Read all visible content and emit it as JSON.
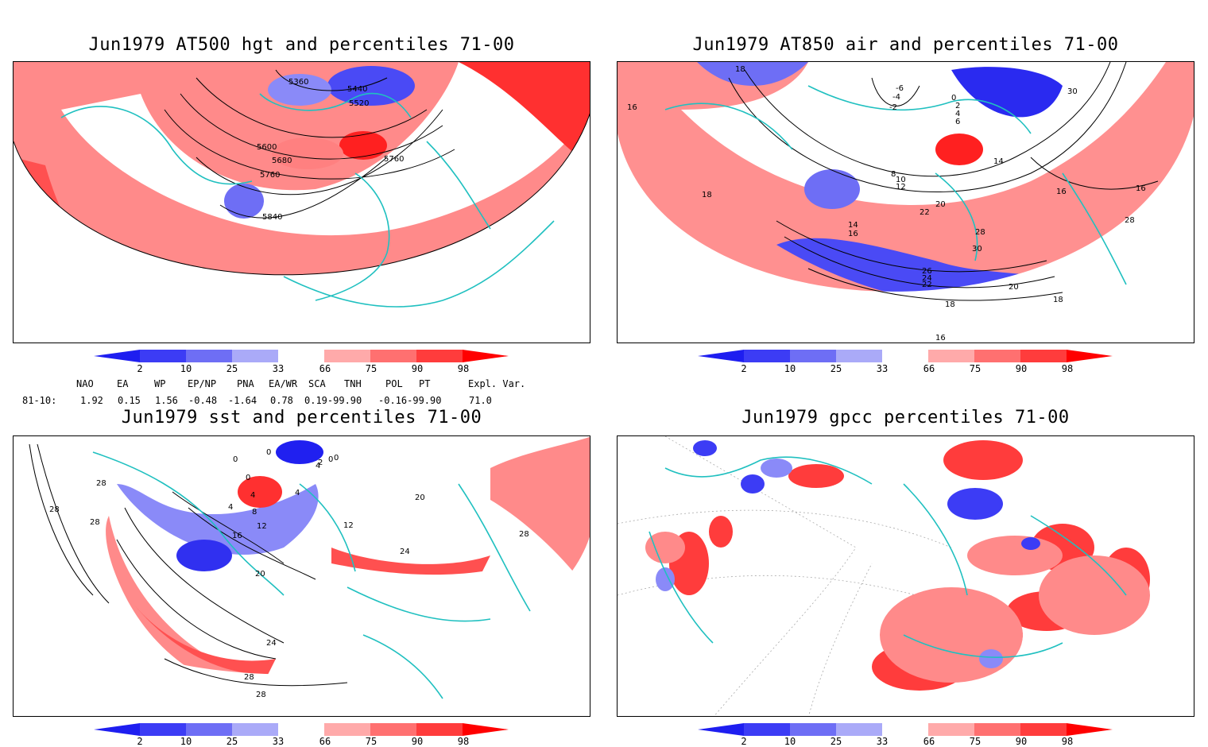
{
  "panels": [
    {
      "title": "Jun1979 AT500 hgt and percentiles 71-00",
      "contour_labels": [
        "5360",
        "5440",
        "5520",
        "5600",
        "5680",
        "5760",
        "5760",
        "5840"
      ]
    },
    {
      "title": "Jun1979 AT850 air and percentiles 71-00",
      "contour_labels": [
        "18",
        "16",
        "-6",
        "-4",
        "-2",
        "0",
        "2",
        "4",
        "6",
        "30",
        "14",
        "8",
        "10",
        "12",
        "18",
        "20",
        "22",
        "28",
        "30",
        "26",
        "24",
        "22",
        "14",
        "16",
        "20",
        "18",
        "18",
        "16",
        "16",
        "28",
        "16"
      ]
    },
    {
      "title": "Jun1979 sst and percentiles 71-00",
      "contour_labels": [
        "28",
        "28",
        "28",
        "0",
        "0",
        "0",
        "0",
        "2",
        "4",
        "4",
        "0",
        "4",
        "4",
        "8",
        "12",
        "16",
        "20",
        "24",
        "28",
        "28",
        "12",
        "20",
        "24",
        "28"
      ]
    },
    {
      "title": "Jun1979 gpcc percentiles 71-00",
      "contour_labels": []
    }
  ],
  "colorbar": {
    "labels": [
      "2",
      "10",
      "25",
      "33",
      "66",
      "75",
      "90",
      "98"
    ],
    "colors": {
      "below_2": "#1e1ef0",
      "2_10": "#3c3cf5",
      "10_25": "#6e6ef5",
      "25_33": "#aaaaf8",
      "33_66": "#ffffff",
      "66_75": "#ffaaaa",
      "75_90": "#ff7070",
      "90_98": "#ff3c3c",
      "above_98": "#ff0000"
    }
  },
  "indices": {
    "headers": [
      "NAO",
      "EA",
      "WP",
      "EP/NP",
      "PNA",
      "EA/WR",
      "SCA",
      "TNH",
      "POL",
      "PT",
      "Expl. Var."
    ],
    "row_label": "81-10:",
    "values": [
      "1.92",
      "0.15",
      "1.56",
      "-0.48",
      "-1.64",
      "0.78",
      "0.19-99.90",
      "-0.16-99.90",
      "71.0"
    ]
  },
  "colors": {
    "coastline": "#20c0c0",
    "contour": "#000000"
  }
}
